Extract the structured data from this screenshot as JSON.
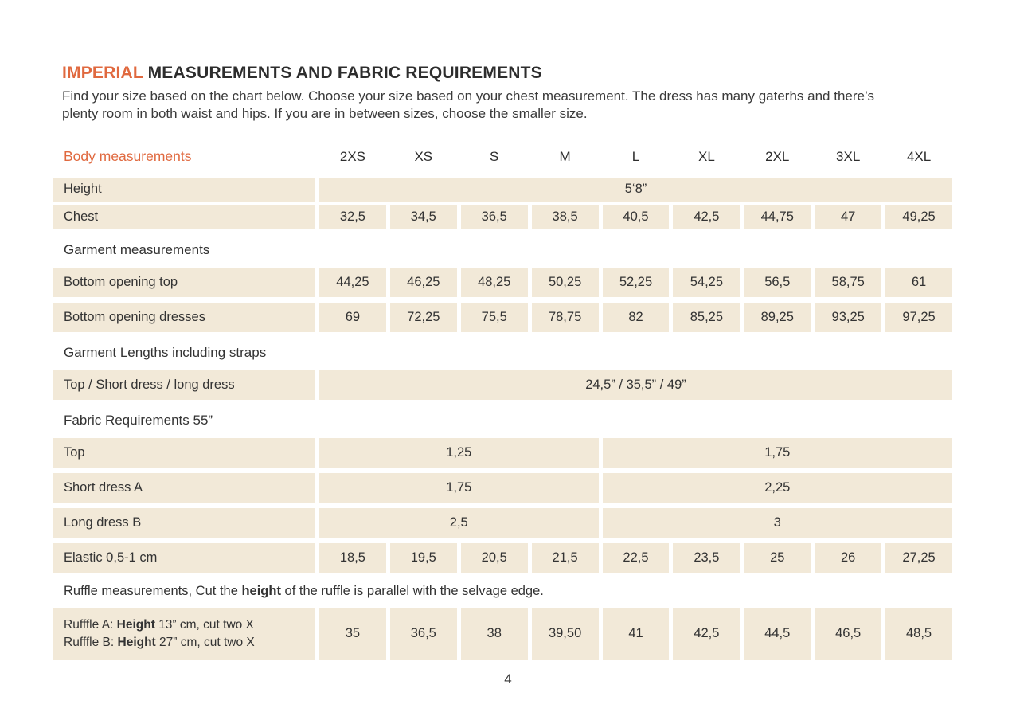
{
  "colors": {
    "accent": "#e0693f",
    "cell_bg": "#f2e9d8",
    "text": "#2e2e2e"
  },
  "header": {
    "title_highlight": "IMPERIAL",
    "title_rest": "MEASUREMENTS AND FABRIC REQUIREMENTS",
    "intro_line1": "Find your size based on the chart below. Choose your size based on your chest measurement. The dress has many gaterhs and there’s",
    "intro_line2": "plenty room in both waist and hips. If you are in between sizes, choose the smaller size."
  },
  "footer": {
    "page_number": "4"
  },
  "table": {
    "rows": [
      {
        "type": "header",
        "label": "Body measurements",
        "cells": [
          "2XS",
          "XS",
          "S",
          "M",
          "L",
          "XL",
          "2XL",
          "3XL",
          "4XL"
        ]
      },
      {
        "type": "full",
        "short": true,
        "label": "Height",
        "value": "5‘8”"
      },
      {
        "type": "cells",
        "short": true,
        "label": "Chest",
        "values": [
          "32,5",
          "34,5",
          "36,5",
          "38,5",
          "40,5",
          "42,5",
          "44,75",
          "47",
          "49,25"
        ]
      },
      {
        "type": "section",
        "label": "Garment measurements"
      },
      {
        "type": "cells",
        "label": "Bottom opening top",
        "values": [
          "44,25",
          "46,25",
          "48,25",
          "50,25",
          "52,25",
          "54,25",
          "56,5",
          "58,75",
          "61"
        ]
      },
      {
        "type": "cells",
        "label": "Bottom opening dresses",
        "values": [
          "69",
          "72,25",
          "75,5",
          "78,75",
          "82",
          "85,25",
          "89,25",
          "93,25",
          "97,25"
        ]
      },
      {
        "type": "section",
        "label": "Garment Lengths including straps"
      },
      {
        "type": "full",
        "label": "Top / Short dress / long dress",
        "value": "24,5” / 35,5” / 49”"
      },
      {
        "type": "section",
        "label": "Fabric Requirements 55”"
      },
      {
        "type": "split",
        "label": "Top",
        "left": "1,25",
        "right": "1,75"
      },
      {
        "type": "split",
        "label": "Short dress A",
        "left": "1,75",
        "right": "2,25"
      },
      {
        "type": "split",
        "label": "Long dress B",
        "left": "2,5",
        "right": "3"
      },
      {
        "type": "cells",
        "label": "Elastic 0,5-1 cm",
        "values": [
          "18,5",
          "19,5",
          "20,5",
          "21,5",
          "22,5",
          "23,5",
          "25",
          "26",
          "27,25"
        ]
      },
      {
        "type": "note",
        "parts": [
          {
            "text": "Ruffle measurements, Cut the "
          },
          {
            "text": "height",
            "bold": true
          },
          {
            "text": " of the ruffle is parallel with the selvage edge."
          }
        ]
      },
      {
        "type": "cells",
        "tall": true,
        "label_lines": [
          [
            {
              "text": "Rufffle A: "
            },
            {
              "text": "Height",
              "bold": true
            },
            {
              "text": " 13” cm, cut two X"
            }
          ],
          [
            {
              "text": "Rufffle B: "
            },
            {
              "text": "Height",
              "bold": true
            },
            {
              "text": " 27” cm, cut two X"
            }
          ]
        ],
        "values": [
          "35",
          "36,5",
          "38",
          "39,50",
          "41",
          "42,5",
          "44,5",
          "46,5",
          "48,5"
        ]
      }
    ]
  }
}
